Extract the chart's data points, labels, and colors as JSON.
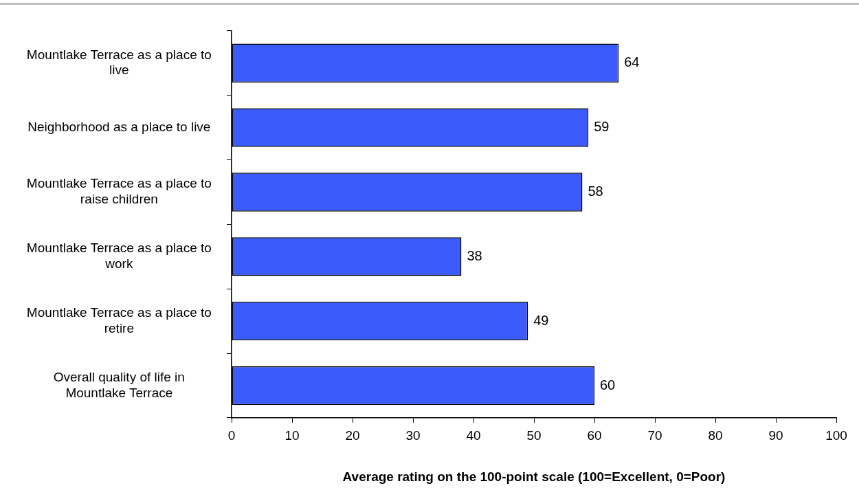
{
  "chart_data": {
    "type": "bar",
    "orientation": "horizontal",
    "xlabel": "Average rating on the 100-point scale (100=Excellent, 0=Poor)",
    "categories": [
      "Mountlake Terrace as a place to live",
      "Neighborhood as a place to live",
      "Mountlake Terrace as a place to raise children",
      "Mountlake Terrace as a place to work",
      "Mountlake Terrace as a place to retire",
      "Overall quality of life in Mountlake Terrace"
    ],
    "values": [
      64,
      59,
      58,
      38,
      49,
      60
    ],
    "color": "#3b5bfb",
    "xlim": [
      0,
      100
    ],
    "xticks": [
      0,
      10,
      20,
      30,
      40,
      50,
      60,
      70,
      80,
      90,
      100
    ],
    "grid": false,
    "legend": false,
    "data_labels": true
  }
}
